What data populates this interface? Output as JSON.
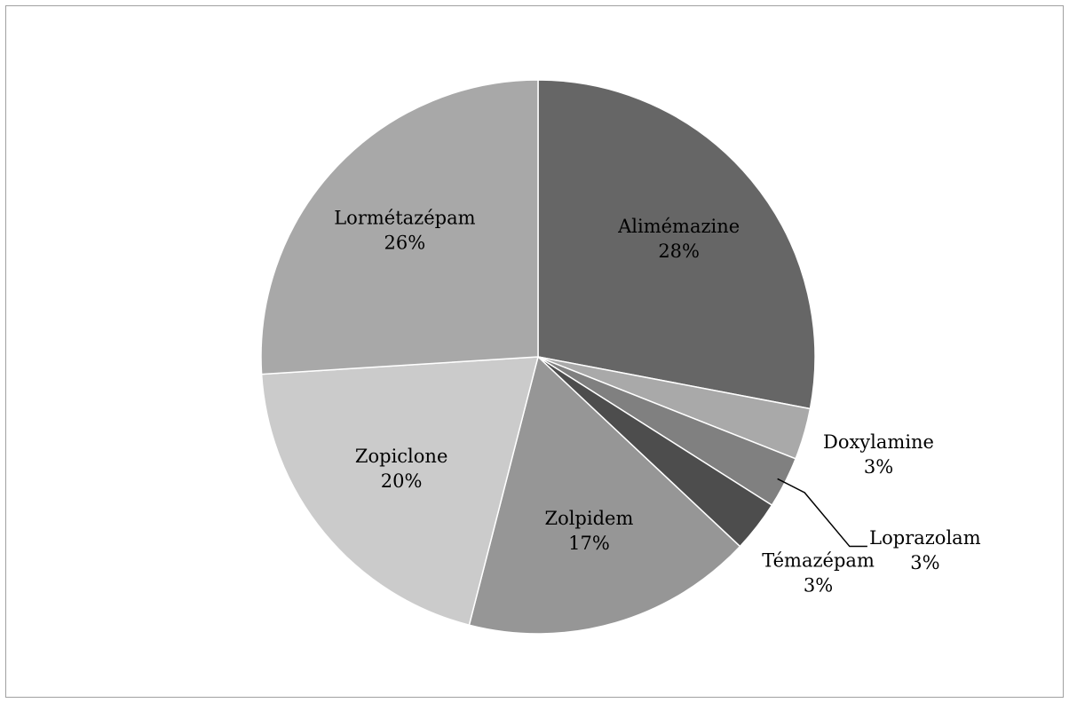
{
  "chart_data": {
    "type": "pie",
    "categories": [
      "Alimémazine",
      "Doxylamine",
      "Loprazolam",
      "Témazépam",
      "Zolpidem",
      "Zopiclone",
      "Lormétazépam"
    ],
    "values": [
      28,
      3,
      3,
      3,
      17,
      20,
      26
    ],
    "value_labels": [
      "28%",
      "3%",
      "3%",
      "3%",
      "17%",
      "20%",
      "26%"
    ],
    "colors": [
      "#666666",
      "#a9a9a9",
      "#808080",
      "#4d4d4d",
      "#969696",
      "#cbcbcb",
      "#a8a8a8"
    ]
  }
}
